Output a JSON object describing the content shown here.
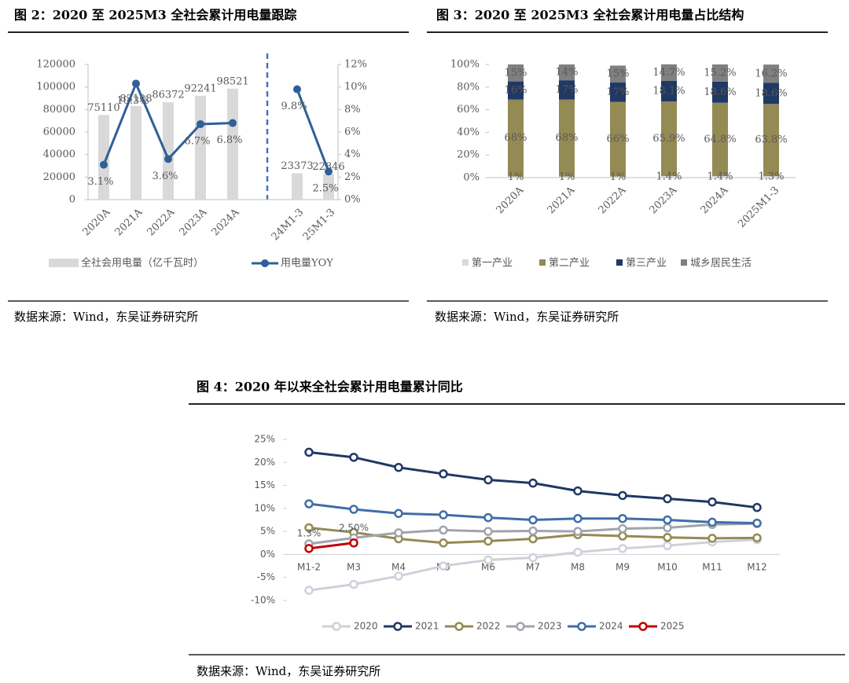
{
  "chart_data": [
    {
      "type": "combo",
      "title": "图 2：2020 至 2025M3 全社会累计用电量跟踪",
      "source": "数据来源：Wind，东吴证券研究所",
      "categories": [
        "2020A",
        "2021A",
        "2022A",
        "2023A",
        "2024A",
        "24M1-3",
        "25M1-3"
      ],
      "series": [
        {
          "name": "全社会用电量（亿千瓦时）",
          "type": "bar",
          "color": "#d9d9d9",
          "values": [
            75110,
            83128,
            86372,
            92241,
            98521,
            23373,
            22846
          ]
        },
        {
          "name": "用电量YOY",
          "type": "line",
          "axis": "y2",
          "color": "#2f5f98",
          "values": [
            3.1,
            10.3,
            3.6,
            6.7,
            6.8,
            9.8,
            2.5
          ],
          "value_labels": [
            "3.1%",
            "10.3%",
            "3.6%",
            "6.7%",
            "6.8%",
            "9.8%",
            "2.5%"
          ]
        }
      ],
      "ylim": [
        0,
        120000
      ],
      "yticks": [
        0,
        20000,
        40000,
        60000,
        80000,
        100000,
        120000
      ],
      "y2lim": [
        0,
        12
      ],
      "y2ticks": [
        {
          "value": 0,
          "label": "0%"
        },
        {
          "value": 2,
          "label": "2%"
        },
        {
          "value": 4,
          "label": "4%"
        },
        {
          "value": 6,
          "label": "6%"
        },
        {
          "value": 8,
          "label": "8%"
        },
        {
          "value": 10,
          "label": "10%"
        },
        {
          "value": 12,
          "label": "12%"
        }
      ],
      "legend": "bottom"
    },
    {
      "type": "stacked",
      "title": "图 3：2020 至 2025M3 全社会累计用电量占比结构",
      "source": "数据来源：Wind，东吴证券研究所",
      "categories": [
        "2020A",
        "2021A",
        "2022A",
        "2023A",
        "2024A",
        "2025M1-3"
      ],
      "series": [
        {
          "name": "第一产业",
          "color": "#d9d9d9",
          "values": [
            1,
            1,
            1,
            1.4,
            1.4,
            1.3
          ],
          "value_labels": [
            "1%",
            "1%",
            "1%",
            "1.4%",
            "1.4%",
            "1.3%"
          ]
        },
        {
          "name": "第二产业",
          "color": "#948a54",
          "values": [
            68,
            68,
            66,
            65.9,
            64.8,
            63.8
          ],
          "value_labels": [
            "68%",
            "68%",
            "66%",
            "65.9%",
            "64.8%",
            "63.8%"
          ]
        },
        {
          "name": "第三产业",
          "color": "#1f3864",
          "values": [
            16,
            17,
            17,
            18.1,
            18.6,
            18.6
          ],
          "value_labels": [
            "16%",
            "17%",
            "17%",
            "18.1%",
            "18.6%",
            "18.6%"
          ]
        },
        {
          "name": "城乡居民生活",
          "color": "#808080",
          "values": [
            15,
            14,
            15,
            14.7,
            15.2,
            16.2
          ],
          "value_labels": [
            "15%",
            "14%",
            "15%",
            "14.7%",
            "15.2%",
            "16.2%"
          ]
        }
      ],
      "ylim": [
        0,
        100
      ],
      "yticks": [
        {
          "value": 0,
          "label": "0%"
        },
        {
          "value": 20,
          "label": "20%"
        },
        {
          "value": 40,
          "label": "40%"
        },
        {
          "value": 60,
          "label": "60%"
        },
        {
          "value": 80,
          "label": "80%"
        },
        {
          "value": 100,
          "label": "100%"
        }
      ],
      "legend": "bottom"
    },
    {
      "type": "line",
      "title": "图 4：2020 年以来全社会累计用电量累计同比",
      "source": "数据来源：Wind，东吴证券研究所",
      "categories": [
        "M1-2",
        "M3",
        "M4",
        "M5",
        "M6",
        "M7",
        "M8",
        "M9",
        "M10",
        "M11",
        "M12"
      ],
      "series": [
        {
          "name": "2020",
          "color": "#cdd2da",
          "values": [
            -7.8,
            -6.5,
            -4.7,
            -2.5,
            -1.2,
            -0.7,
            0.5,
            1.3,
            1.9,
            2.7,
            3.2
          ]
        },
        {
          "name": "2021",
          "color": "#1f3864",
          "values": [
            22.2,
            21.1,
            18.9,
            17.5,
            16.2,
            15.5,
            13.8,
            12.8,
            12.1,
            11.4,
            10.2
          ]
        },
        {
          "name": "2022",
          "color": "#948a54",
          "values": [
            5.8,
            4.8,
            3.4,
            2.5,
            2.9,
            3.4,
            4.3,
            4.0,
            3.7,
            3.5,
            3.6
          ]
        },
        {
          "name": "2023",
          "color": "#a0a4ab",
          "values": [
            2.3,
            3.6,
            4.7,
            5.3,
            5.0,
            5.1,
            5.0,
            5.6,
            5.8,
            6.5,
            6.7
          ]
        },
        {
          "name": "2024",
          "color": "#3f6ea8",
          "values": [
            11.0,
            9.8,
            8.9,
            8.6,
            8.0,
            7.5,
            7.8,
            7.8,
            7.5,
            7.0,
            6.8
          ]
        },
        {
          "name": "2025",
          "color": "#c00000",
          "values": [
            1.3,
            2.5,
            null,
            null,
            null,
            null,
            null,
            null,
            null,
            null,
            null
          ],
          "value_labels": [
            "1.3%",
            "2.50%",
            null,
            null,
            null,
            null,
            null,
            null,
            null,
            null,
            null
          ]
        }
      ],
      "ylim": [
        -10,
        25
      ],
      "yticks": [
        {
          "value": -10,
          "label": "-10%"
        },
        {
          "value": -5,
          "label": "-5%"
        },
        {
          "value": 0,
          "label": "0%"
        },
        {
          "value": 5,
          "label": "5%"
        },
        {
          "value": 10,
          "label": "10%"
        },
        {
          "value": 15,
          "label": "15%"
        },
        {
          "value": 20,
          "label": "20%"
        },
        {
          "value": 25,
          "label": "25%"
        }
      ],
      "legend": "bottom"
    }
  ]
}
